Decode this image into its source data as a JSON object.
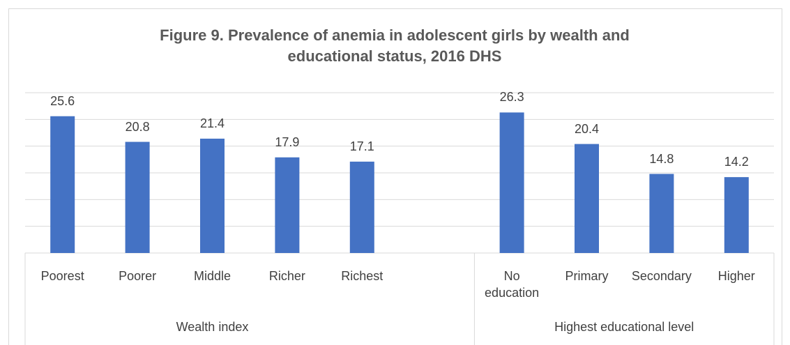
{
  "chart_data": {
    "type": "bar",
    "title": "Figure 9. Prevalence of anemia in adolescent girls by wealth and educational status, 2016 DHS",
    "categories": [
      "Poorest",
      "Poorer",
      "Middle",
      "Richer",
      "Richest",
      null,
      "No education",
      "Primary",
      "Secondary",
      "Higher"
    ],
    "values": [
      25.6,
      20.8,
      21.4,
      17.9,
      17.1,
      null,
      26.3,
      20.4,
      14.8,
      14.2
    ],
    "groups": [
      "Wealth index",
      "Highest educational level"
    ],
    "color": "#4472c4",
    "ylim": [
      0,
      30
    ],
    "yticks": [
      0,
      5,
      10,
      15,
      20,
      25,
      30
    ],
    "grid": true
  }
}
